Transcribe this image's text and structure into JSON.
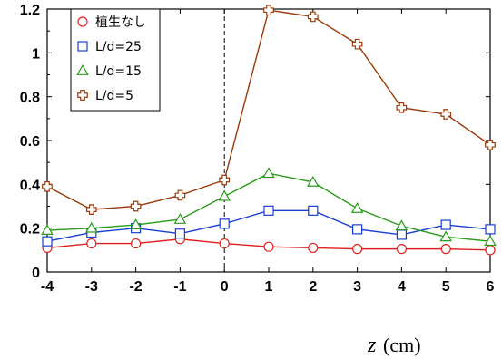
{
  "chart_data": {
    "type": "line",
    "x": [
      -4,
      -3,
      -2,
      -1,
      0,
      1,
      2,
      3,
      4,
      5,
      6
    ],
    "xlim": [
      -4,
      6
    ],
    "ylim": [
      0,
      1.2
    ],
    "xticks": [
      "-4",
      "-3",
      "-2",
      "-1",
      "0",
      "1",
      "2",
      "3",
      "4",
      "5",
      "6"
    ],
    "yticks": [
      "0",
      "0.2",
      "0.4",
      "0.6",
      "0.8",
      "1",
      "1.2"
    ],
    "xlabel_var": "z",
    "xlabel_unit": "(cm)",
    "ylabel": "",
    "vertical_reference_line_x": 0,
    "grid": false,
    "legend_position": "top-left",
    "series": [
      {
        "name": "植生なし",
        "marker": "circle",
        "color": "#e02020",
        "values": [
          0.11,
          0.13,
          0.13,
          0.15,
          0.13,
          0.115,
          0.11,
          0.105,
          0.105,
          0.105,
          0.1
        ]
      },
      {
        "name": "L/d=25",
        "marker": "square",
        "color": "#1a3fd0",
        "values": [
          0.14,
          0.18,
          0.2,
          0.175,
          0.22,
          0.28,
          0.28,
          0.195,
          0.17,
          0.215,
          0.195
        ]
      },
      {
        "name": "L/d=15",
        "marker": "triangle",
        "color": "#2a9a1a",
        "values": [
          0.19,
          0.2,
          0.215,
          0.24,
          0.345,
          0.45,
          0.41,
          0.29,
          0.21,
          0.16,
          0.14
        ]
      },
      {
        "name": "L/d=5",
        "marker": "cross",
        "color": "#9a3a0a",
        "values": [
          0.39,
          0.285,
          0.3,
          0.35,
          0.42,
          1.195,
          1.165,
          1.04,
          0.75,
          0.72,
          0.58
        ]
      }
    ]
  }
}
